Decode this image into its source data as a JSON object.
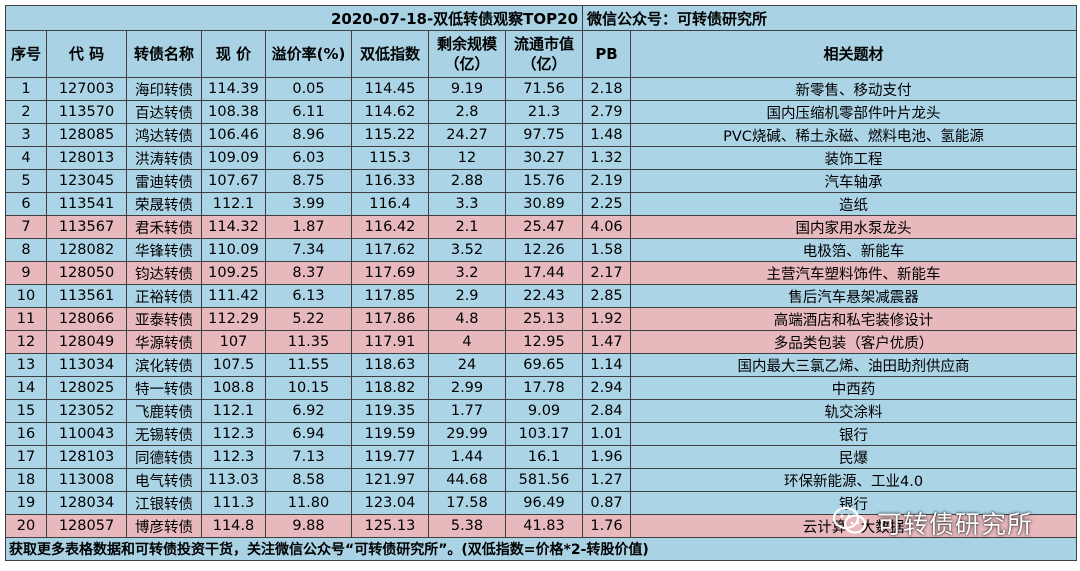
{
  "title": "2020-07-18-双低转债观察TOP20",
  "wechat": "微信公众号：可转债研究所",
  "headers": {
    "no": "序号",
    "code": "代 码",
    "name": "转债名称",
    "price": "现 价",
    "premium": "溢价率(%)",
    "double_low": "双低指数",
    "remain_l1": "剩余规模",
    "remain_l2": "（亿）",
    "float_l1": "流通市值",
    "float_l2": "（亿）",
    "pb": "PB",
    "theme": "相关题材"
  },
  "rows": [
    {
      "no": "1",
      "code": "127003",
      "name": "海印转债",
      "price": "114.39",
      "premium": "0.05",
      "double_low": "114.45",
      "remain": "9.19",
      "float": "71.56",
      "pb": "2.18",
      "theme": "新零售、移动支付",
      "highlight": false
    },
    {
      "no": "2",
      "code": "113570",
      "name": "百达转债",
      "price": "108.38",
      "premium": "6.11",
      "double_low": "114.62",
      "remain": "2.8",
      "float": "21.3",
      "pb": "2.79",
      "theme": "国内压缩机零部件叶片龙头",
      "highlight": false
    },
    {
      "no": "3",
      "code": "128085",
      "name": "鸿达转债",
      "price": "106.46",
      "premium": "8.96",
      "double_low": "115.22",
      "remain": "24.27",
      "float": "97.75",
      "pb": "1.48",
      "theme": "PVC烧碱、稀土永磁、燃料电池、氢能源",
      "highlight": false
    },
    {
      "no": "4",
      "code": "128013",
      "name": "洪涛转债",
      "price": "109.09",
      "premium": "6.03",
      "double_low": "115.3",
      "remain": "12",
      "float": "30.27",
      "pb": "1.32",
      "theme": "装饰工程",
      "highlight": false
    },
    {
      "no": "5",
      "code": "123045",
      "name": "雷迪转债",
      "price": "107.67",
      "premium": "8.75",
      "double_low": "116.33",
      "remain": "2.88",
      "float": "15.76",
      "pb": "2.19",
      "theme": "汽车轴承",
      "highlight": false
    },
    {
      "no": "6",
      "code": "113541",
      "name": "荣晟转债",
      "price": "112.1",
      "premium": "3.99",
      "double_low": "116.4",
      "remain": "3.3",
      "float": "30.89",
      "pb": "2.25",
      "theme": "造纸",
      "highlight": false
    },
    {
      "no": "7",
      "code": "113567",
      "name": "君禾转债",
      "price": "114.32",
      "premium": "1.87",
      "double_low": "116.42",
      "remain": "2.1",
      "float": "25.47",
      "pb": "4.06",
      "theme": "国内家用水泵龙头",
      "highlight": true
    },
    {
      "no": "8",
      "code": "128082",
      "name": "华锋转债",
      "price": "110.09",
      "premium": "7.34",
      "double_low": "117.62",
      "remain": "3.52",
      "float": "12.26",
      "pb": "1.58",
      "theme": "电极箔、新能车",
      "highlight": false
    },
    {
      "no": "9",
      "code": "128050",
      "name": "钧达转债",
      "price": "109.25",
      "premium": "8.37",
      "double_low": "117.69",
      "remain": "3.2",
      "float": "17.44",
      "pb": "2.17",
      "theme": "主营汽车塑料饰件、新能车",
      "highlight": true
    },
    {
      "no": "10",
      "code": "113561",
      "name": "正裕转债",
      "price": "111.42",
      "premium": "6.13",
      "double_low": "117.85",
      "remain": "2.9",
      "float": "22.43",
      "pb": "2.85",
      "theme": "售后汽车悬架减震器",
      "highlight": false
    },
    {
      "no": "11",
      "code": "128066",
      "name": "亚泰转债",
      "price": "112.29",
      "premium": "5.22",
      "double_low": "117.86",
      "remain": "4.8",
      "float": "25.13",
      "pb": "1.92",
      "theme": "高端酒店和私宅装修设计",
      "highlight": true
    },
    {
      "no": "12",
      "code": "128049",
      "name": "华源转债",
      "price": "107",
      "premium": "11.35",
      "double_low": "117.91",
      "remain": "4",
      "float": "12.95",
      "pb": "1.47",
      "theme": "多品类包装（客户优质）",
      "highlight": true
    },
    {
      "no": "13",
      "code": "113034",
      "name": "滨化转债",
      "price": "107.5",
      "premium": "11.55",
      "double_low": "118.63",
      "remain": "24",
      "float": "69.65",
      "pb": "1.14",
      "theme": "国内最大三氯乙烯、油田助剂供应商",
      "highlight": false
    },
    {
      "no": "14",
      "code": "128025",
      "name": "特一转债",
      "price": "108.8",
      "premium": "10.15",
      "double_low": "118.82",
      "remain": "2.99",
      "float": "17.78",
      "pb": "2.94",
      "theme": "中西药",
      "highlight": false
    },
    {
      "no": "15",
      "code": "123052",
      "name": "飞鹿转债",
      "price": "112.1",
      "premium": "6.92",
      "double_low": "119.35",
      "remain": "1.77",
      "float": "9.09",
      "pb": "2.84",
      "theme": "轨交涂料",
      "highlight": false
    },
    {
      "no": "16",
      "code": "110043",
      "name": "无锡转债",
      "price": "112.3",
      "premium": "6.94",
      "double_low": "119.59",
      "remain": "29.99",
      "float": "103.17",
      "pb": "1.01",
      "theme": "银行",
      "highlight": false
    },
    {
      "no": "17",
      "code": "128103",
      "name": "同德转债",
      "price": "112.3",
      "premium": "7.13",
      "double_low": "119.77",
      "remain": "1.44",
      "float": "16.1",
      "pb": "1.96",
      "theme": "民爆",
      "highlight": false
    },
    {
      "no": "18",
      "code": "113008",
      "name": "电气转债",
      "price": "113.03",
      "premium": "8.58",
      "double_low": "121.97",
      "remain": "44.68",
      "float": "581.56",
      "pb": "1.27",
      "theme": "环保新能源、工业4.0",
      "highlight": false
    },
    {
      "no": "19",
      "code": "128034",
      "name": "江银转债",
      "price": "111.3",
      "premium": "11.80",
      "double_low": "123.04",
      "remain": "17.58",
      "float": "96.49",
      "pb": "0.87",
      "theme": "银行",
      "highlight": false
    },
    {
      "no": "20",
      "code": "128057",
      "name": "博彦转债",
      "price": "114.8",
      "premium": "9.88",
      "double_low": "125.13",
      "remain": "5.38",
      "float": "41.83",
      "pb": "1.76",
      "theme": "云计算、大数据",
      "highlight": true
    }
  ],
  "footer": "获取更多表格数据和可转债投资干货，关注微信公众号“可转债研究所”。(双低指数=价格*2-转股价值)",
  "watermark": "可转债研究所",
  "colors": {
    "header": "#a9d3e5",
    "row": "#acd4e7",
    "highlight": "#e7b8bc"
  }
}
